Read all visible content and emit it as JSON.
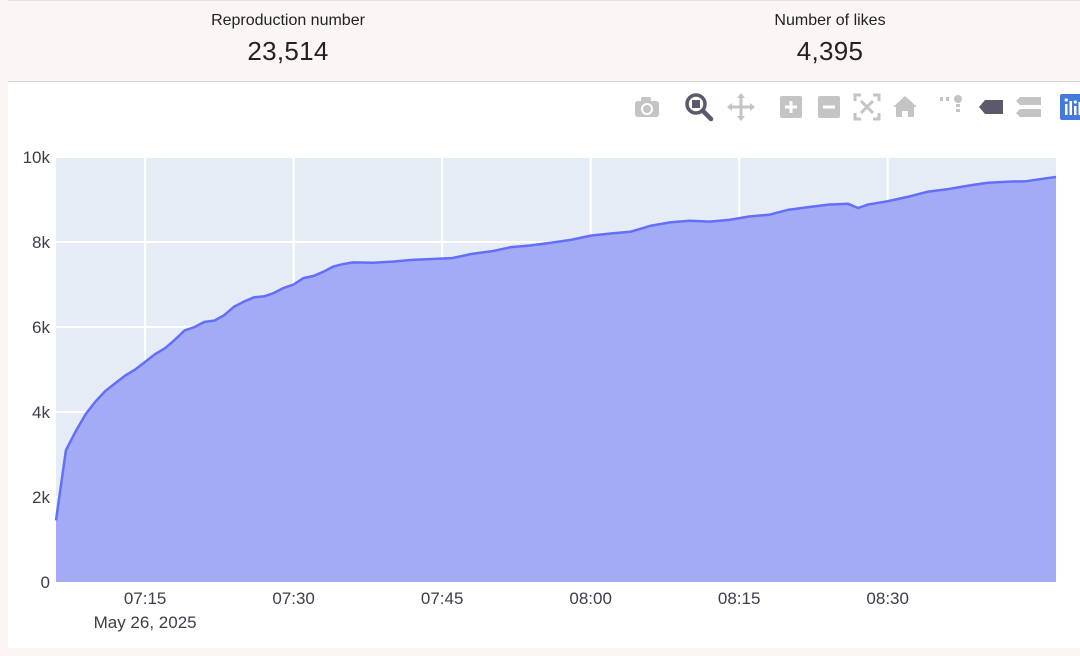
{
  "stats": {
    "reproduction_label": "Reproduction number",
    "reproduction_value": "23,514",
    "likes_label": "Number of likes",
    "likes_value": "4,395"
  },
  "toolbar": {
    "buttons": [
      {
        "name": "camera-icon"
      },
      {
        "name": "zoom-icon"
      },
      {
        "name": "pan-icon"
      },
      {
        "name": "zoom-in-icon"
      },
      {
        "name": "zoom-out-icon"
      },
      {
        "name": "autoscale-icon"
      },
      {
        "name": "reset-axes-icon"
      },
      {
        "name": "spike-lines-icon"
      },
      {
        "name": "hover-closest-icon"
      },
      {
        "name": "hover-compare-icon"
      },
      {
        "name": "plotly-logo-icon"
      }
    ]
  },
  "colors": {
    "fill": "#a3abf7",
    "line": "#636efa",
    "plot_bg": "#e5ecf6",
    "grid": "#ffffff"
  },
  "chart_data": {
    "type": "area",
    "ylim": [
      0,
      10000
    ],
    "yticks": [
      "0",
      "2k",
      "4k",
      "6k",
      "8k",
      "10k"
    ],
    "ytick_values": [
      0,
      2000,
      4000,
      6000,
      8000,
      10000
    ],
    "xticks": [
      "07:15",
      "07:30",
      "07:45",
      "08:00",
      "08:15",
      "08:30"
    ],
    "xtick_values": [
      "07:15",
      "07:30",
      "07:45",
      "08:00",
      "08:15",
      "08:30"
    ],
    "x_date_label": "May 26, 2025",
    "xlim": [
      "07:06",
      "08:47"
    ],
    "grid": true,
    "series": [
      {
        "x": [
          "07:06",
          "07:07",
          "07:08",
          "07:09",
          "07:10",
          "07:11",
          "07:12",
          "07:13",
          "07:14",
          "07:15",
          "07:16",
          "07:17",
          "07:18",
          "07:19",
          "07:20",
          "07:21",
          "07:22",
          "07:23",
          "07:24",
          "07:25",
          "07:26",
          "07:27",
          "07:28",
          "07:29",
          "07:30",
          "07:31",
          "07:32",
          "07:33",
          "07:34",
          "07:35",
          "07:36",
          "07:38",
          "07:40",
          "07:42",
          "07:44",
          "07:46",
          "07:48",
          "07:50",
          "07:52",
          "07:54",
          "07:56",
          "07:58",
          "08:00",
          "08:02",
          "08:04",
          "08:06",
          "08:08",
          "08:10",
          "08:12",
          "08:14",
          "08:16",
          "08:18",
          "08:20",
          "08:22",
          "08:24",
          "08:26",
          "08:27",
          "08:28",
          "08:30",
          "08:32",
          "08:34",
          "08:36",
          "08:38",
          "08:40",
          "08:42",
          "08:44",
          "08:46",
          "08:47"
        ],
        "y": [
          1450,
          3100,
          3550,
          3950,
          4250,
          4500,
          4680,
          4860,
          5000,
          5180,
          5360,
          5500,
          5700,
          5920,
          6000,
          6120,
          6150,
          6280,
          6480,
          6600,
          6700,
          6720,
          6800,
          6920,
          7000,
          7150,
          7200,
          7300,
          7420,
          7480,
          7520,
          7510,
          7540,
          7580,
          7600,
          7620,
          7720,
          7780,
          7880,
          7920,
          7980,
          8050,
          8150,
          8200,
          8240,
          8380,
          8460,
          8500,
          8480,
          8520,
          8600,
          8640,
          8760,
          8820,
          8880,
          8900,
          8800,
          8880,
          8960,
          9060,
          9180,
          9240,
          9320,
          9390,
          9420,
          9430,
          9500,
          9530
        ]
      }
    ]
  }
}
